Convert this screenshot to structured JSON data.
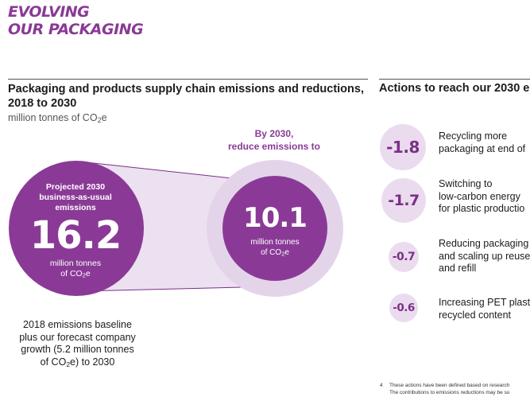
{
  "hero": {
    "line1": "EVOLVING",
    "line2": "OUR PACKAGING"
  },
  "left_section": {
    "title": "Packaging and products supply chain emissions and reductions, 2018 to 2030",
    "subtitle_prefix": "million tonnes of CO",
    "subtitle_sub": "2",
    "subtitle_suffix": "e"
  },
  "target": {
    "line1": "By 2030,",
    "line2": "reduce emissions to"
  },
  "projected": {
    "label_line1": "Projected 2030",
    "label_line2": "business-as-usual",
    "label_line3": "emissions",
    "value": "16.2",
    "unit_line1": "million tonnes",
    "unit_line2_prefix": "of CO",
    "unit_line2_sub": "2",
    "unit_line2_suffix": "e"
  },
  "reduced": {
    "value": "10.1",
    "unit_line1": "million tonnes",
    "unit_line2_prefix": "of CO",
    "unit_line2_sub": "2",
    "unit_line2_suffix": "e"
  },
  "baseline": {
    "line1": "2018 emissions baseline",
    "line2": "plus our forecast company",
    "line3": "growth (5.2 million tonnes",
    "line4_prefix": "of CO",
    "line4_sub": "2",
    "line4_suffix": "e) to 2030"
  },
  "right_section": {
    "title": "Actions to reach our 2030 e"
  },
  "actions": [
    {
      "value": "-1.8",
      "line1": "Recycling more",
      "line2": "packaging at end of",
      "line3": ""
    },
    {
      "value": "-1.7",
      "line1": "Switching to",
      "line2": "low-carbon energy",
      "line3": "for plastic productio"
    },
    {
      "value": "-0.7",
      "line1": "Reducing packaging",
      "line2": "and scaling up reuse",
      "line3": "and refill"
    },
    {
      "value": "-0.6",
      "line1": "Increasing PET plast",
      "line2": "recycled content",
      "line3": ""
    }
  ],
  "footnote": {
    "number": "4",
    "line1": "These actions have been defined based on research",
    "line2": "The contributions to emissions reductions may be su"
  },
  "colors": {
    "brand_purple": "#8a3a96",
    "dark_purple": "#7b2f88",
    "light_lavender": "#eadcee",
    "halo_lavender": "#e4d4ea"
  }
}
